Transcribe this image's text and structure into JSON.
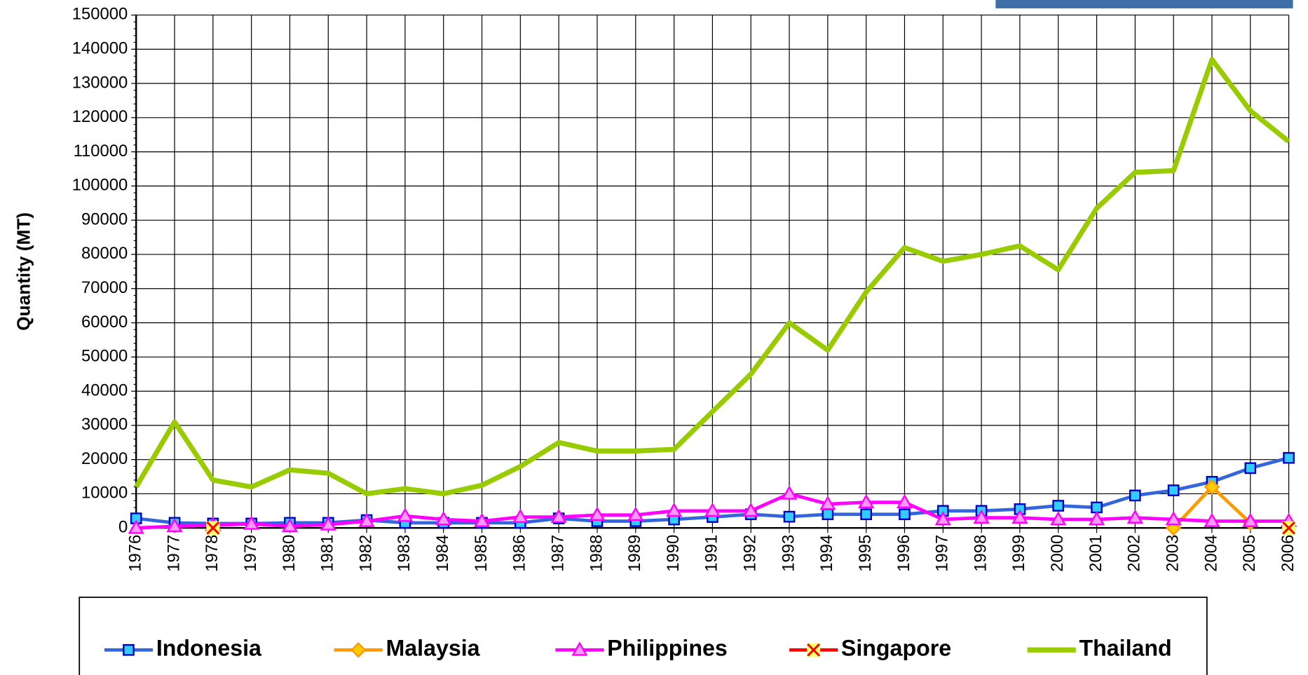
{
  "chart_data": {
    "type": "line",
    "y_label": "Quantity (MT)",
    "categories": [
      "1976",
      "1977",
      "1978",
      "1979",
      "1980",
      "1981",
      "1982",
      "1983",
      "1984",
      "1985",
      "1986",
      "1987",
      "1988",
      "1989",
      "1990",
      "1991",
      "1992",
      "1993",
      "1994",
      "1995",
      "1996",
      "1997",
      "1998",
      "1999",
      "2000",
      "2001",
      "2002",
      "2003",
      "2004",
      "2005",
      "2006"
    ],
    "series": [
      {
        "name": "Indonesia",
        "color": "#3366dd",
        "marker": "square",
        "marker_fill": "#33ccff",
        "values": [
          2800,
          1500,
          1300,
          1300,
          1500,
          1500,
          2300,
          1500,
          1500,
          1500,
          1500,
          2800,
          2000,
          2000,
          2500,
          3200,
          4000,
          3300,
          4000,
          4000,
          4000,
          5000,
          5000,
          5500,
          6500,
          6000,
          9500,
          11000,
          13500,
          17500,
          20500
        ]
      },
      {
        "name": "Malaysia",
        "color": "#ff9900",
        "marker": "diamond",
        "marker_fill": "#ffcc00",
        "values": [
          null,
          null,
          null,
          null,
          null,
          null,
          null,
          null,
          null,
          null,
          null,
          null,
          null,
          null,
          null,
          null,
          null,
          null,
          null,
          null,
          null,
          null,
          null,
          null,
          null,
          null,
          null,
          0,
          12000,
          1500,
          null
        ]
      },
      {
        "name": "Philippines",
        "color": "#ff00ff",
        "marker": "triangle",
        "marker_fill": "#ff99ff",
        "values": [
          0,
          500,
          800,
          1200,
          500,
          1000,
          2000,
          3500,
          2500,
          2000,
          3200,
          3200,
          3800,
          3800,
          5000,
          5000,
          5000,
          10000,
          7000,
          7500,
          7500,
          2500,
          3000,
          3000,
          2500,
          2500,
          3000,
          2500,
          2000,
          2000,
          2000
        ]
      },
      {
        "name": "Singapore",
        "color": "#ff0000",
        "marker": "x",
        "marker_fill": "#ffff66",
        "values": [
          null,
          null,
          0,
          null,
          null,
          null,
          null,
          null,
          null,
          null,
          null,
          null,
          null,
          null,
          null,
          null,
          null,
          null,
          null,
          null,
          null,
          null,
          null,
          null,
          null,
          null,
          null,
          null,
          null,
          null,
          0
        ]
      },
      {
        "name": "Thailand",
        "color": "#99cc00",
        "marker": "none",
        "values": [
          12000,
          31000,
          14000,
          12000,
          17000,
          16000,
          10000,
          11500,
          10000,
          12500,
          18000,
          25000,
          22500,
          22500,
          23000,
          34000,
          45000,
          60000,
          52000,
          69000,
          82000,
          78000,
          80000,
          82500,
          75500,
          93500,
          104000,
          104500,
          137000,
          122000,
          113000
        ]
      }
    ],
    "ylim": [
      0,
      150000
    ],
    "yticks": [
      0,
      10000,
      20000,
      30000,
      40000,
      50000,
      60000,
      70000,
      80000,
      90000,
      100000,
      110000,
      120000,
      130000,
      140000,
      150000
    ],
    "grid": true,
    "legend": "bottom"
  }
}
